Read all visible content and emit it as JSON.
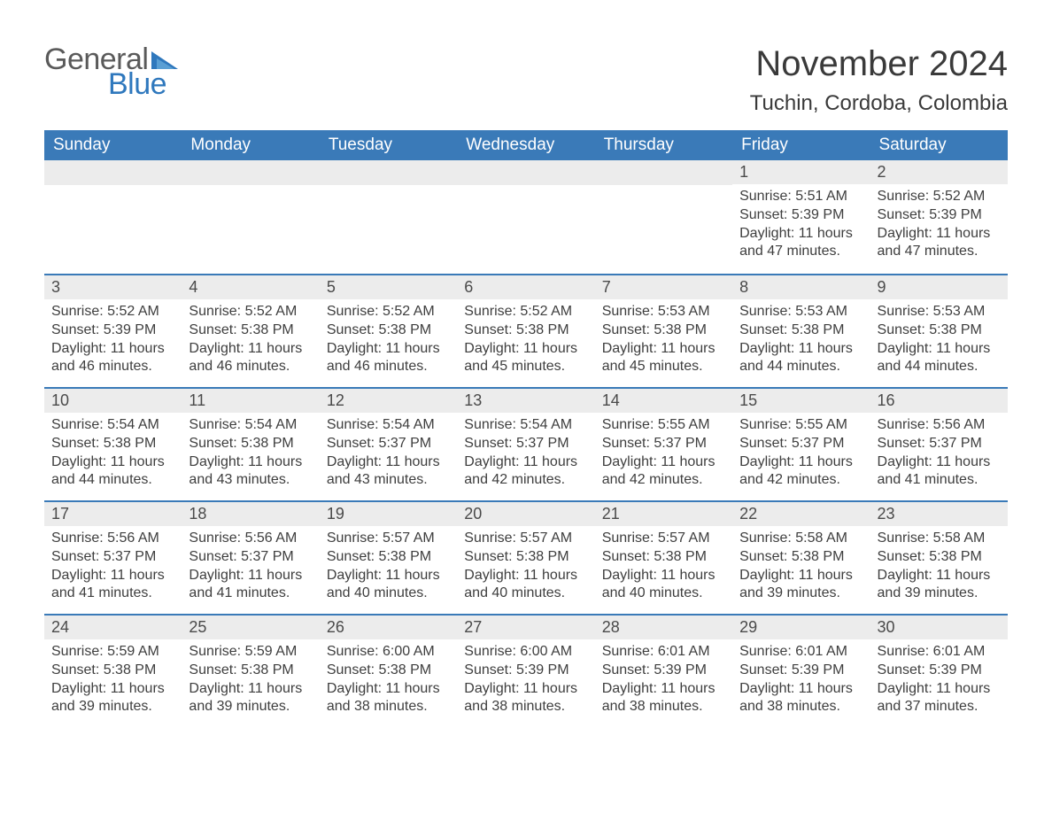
{
  "logo": {
    "word1": "General",
    "word2": "Blue",
    "tri_color": "#2f78bd",
    "text_gray": "#5a5a5a"
  },
  "title": "November 2024",
  "location": "Tuchin, Cordoba, Colombia",
  "colors": {
    "header_bg": "#3a7ab8",
    "header_text": "#ffffff",
    "daybar_bg": "#ececec",
    "daybar_border": "#3a7ab8",
    "body_text": "#3e3e3e"
  },
  "day_headers": [
    "Sunday",
    "Monday",
    "Tuesday",
    "Wednesday",
    "Thursday",
    "Friday",
    "Saturday"
  ],
  "weeks": [
    [
      null,
      null,
      null,
      null,
      null,
      {
        "n": "1",
        "sr": "5:51 AM",
        "ss": "5:39 PM",
        "dl": "11 hours and 47 minutes."
      },
      {
        "n": "2",
        "sr": "5:52 AM",
        "ss": "5:39 PM",
        "dl": "11 hours and 47 minutes."
      }
    ],
    [
      {
        "n": "3",
        "sr": "5:52 AM",
        "ss": "5:39 PM",
        "dl": "11 hours and 46 minutes."
      },
      {
        "n": "4",
        "sr": "5:52 AM",
        "ss": "5:38 PM",
        "dl": "11 hours and 46 minutes."
      },
      {
        "n": "5",
        "sr": "5:52 AM",
        "ss": "5:38 PM",
        "dl": "11 hours and 46 minutes."
      },
      {
        "n": "6",
        "sr": "5:52 AM",
        "ss": "5:38 PM",
        "dl": "11 hours and 45 minutes."
      },
      {
        "n": "7",
        "sr": "5:53 AM",
        "ss": "5:38 PM",
        "dl": "11 hours and 45 minutes."
      },
      {
        "n": "8",
        "sr": "5:53 AM",
        "ss": "5:38 PM",
        "dl": "11 hours and 44 minutes."
      },
      {
        "n": "9",
        "sr": "5:53 AM",
        "ss": "5:38 PM",
        "dl": "11 hours and 44 minutes."
      }
    ],
    [
      {
        "n": "10",
        "sr": "5:54 AM",
        "ss": "5:38 PM",
        "dl": "11 hours and 44 minutes."
      },
      {
        "n": "11",
        "sr": "5:54 AM",
        "ss": "5:38 PM",
        "dl": "11 hours and 43 minutes."
      },
      {
        "n": "12",
        "sr": "5:54 AM",
        "ss": "5:37 PM",
        "dl": "11 hours and 43 minutes."
      },
      {
        "n": "13",
        "sr": "5:54 AM",
        "ss": "5:37 PM",
        "dl": "11 hours and 42 minutes."
      },
      {
        "n": "14",
        "sr": "5:55 AM",
        "ss": "5:37 PM",
        "dl": "11 hours and 42 minutes."
      },
      {
        "n": "15",
        "sr": "5:55 AM",
        "ss": "5:37 PM",
        "dl": "11 hours and 42 minutes."
      },
      {
        "n": "16",
        "sr": "5:56 AM",
        "ss": "5:37 PM",
        "dl": "11 hours and 41 minutes."
      }
    ],
    [
      {
        "n": "17",
        "sr": "5:56 AM",
        "ss": "5:37 PM",
        "dl": "11 hours and 41 minutes."
      },
      {
        "n": "18",
        "sr": "5:56 AM",
        "ss": "5:37 PM",
        "dl": "11 hours and 41 minutes."
      },
      {
        "n": "19",
        "sr": "5:57 AM",
        "ss": "5:38 PM",
        "dl": "11 hours and 40 minutes."
      },
      {
        "n": "20",
        "sr": "5:57 AM",
        "ss": "5:38 PM",
        "dl": "11 hours and 40 minutes."
      },
      {
        "n": "21",
        "sr": "5:57 AM",
        "ss": "5:38 PM",
        "dl": "11 hours and 40 minutes."
      },
      {
        "n": "22",
        "sr": "5:58 AM",
        "ss": "5:38 PM",
        "dl": "11 hours and 39 minutes."
      },
      {
        "n": "23",
        "sr": "5:58 AM",
        "ss": "5:38 PM",
        "dl": "11 hours and 39 minutes."
      }
    ],
    [
      {
        "n": "24",
        "sr": "5:59 AM",
        "ss": "5:38 PM",
        "dl": "11 hours and 39 minutes."
      },
      {
        "n": "25",
        "sr": "5:59 AM",
        "ss": "5:38 PM",
        "dl": "11 hours and 39 minutes."
      },
      {
        "n": "26",
        "sr": "6:00 AM",
        "ss": "5:38 PM",
        "dl": "11 hours and 38 minutes."
      },
      {
        "n": "27",
        "sr": "6:00 AM",
        "ss": "5:39 PM",
        "dl": "11 hours and 38 minutes."
      },
      {
        "n": "28",
        "sr": "6:01 AM",
        "ss": "5:39 PM",
        "dl": "11 hours and 38 minutes."
      },
      {
        "n": "29",
        "sr": "6:01 AM",
        "ss": "5:39 PM",
        "dl": "11 hours and 38 minutes."
      },
      {
        "n": "30",
        "sr": "6:01 AM",
        "ss": "5:39 PM",
        "dl": "11 hours and 37 minutes."
      }
    ]
  ],
  "labels": {
    "sunrise": "Sunrise: ",
    "sunset": "Sunset: ",
    "daylight": "Daylight: "
  }
}
